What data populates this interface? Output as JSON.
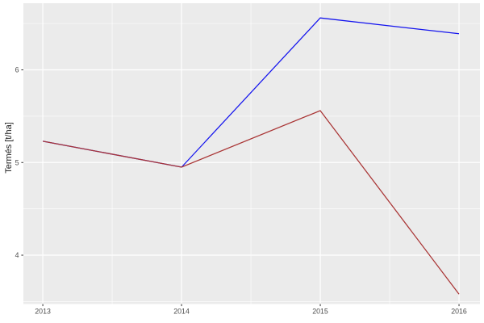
{
  "chart_data": {
    "type": "line",
    "title": "",
    "xlabel": "",
    "ylabel": "Termés [t/ha]",
    "x": [
      2013,
      2014,
      2015,
      2016
    ],
    "series": [
      {
        "name": "blue-series",
        "color": "#1414ee",
        "values": [
          5.23,
          4.95,
          6.56,
          6.39
        ]
      },
      {
        "name": "red-series",
        "color": "#a93434",
        "values": [
          5.23,
          4.95,
          5.56,
          3.58
        ]
      }
    ],
    "x_ticks": {
      "values": [
        2013,
        2014,
        2015,
        2016
      ],
      "labels": [
        "2013",
        "2014",
        "2015",
        "2016"
      ]
    },
    "y_ticks": {
      "values": [
        4,
        5,
        6
      ],
      "labels": [
        "4",
        "5",
        "6"
      ]
    },
    "x_minor": [
      2013.5,
      2014.5,
      2015.5
    ],
    "y_minor": [
      3.5,
      4.5,
      5.5,
      6.5
    ],
    "xlim": [
      2012.86,
      2016.151
    ],
    "ylim": [
      3.473,
      6.719
    ],
    "grid": true,
    "legend": "none",
    "colors": {
      "panel_bg": "#ebebeb",
      "grid": "#ffffff",
      "tick_mark": "#333333",
      "tick_label": "#4d4d4d",
      "axis_title": "#1a1a1a",
      "figure_bg": "#ffffff"
    }
  }
}
